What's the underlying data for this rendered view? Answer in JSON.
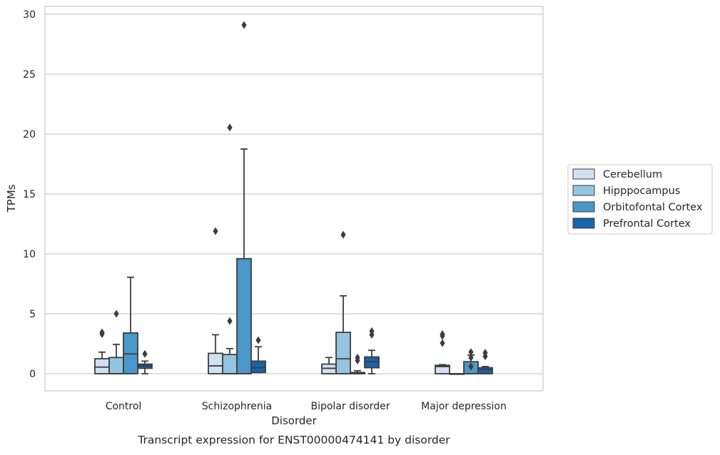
{
  "chart_data": {
    "type": "box",
    "caption": "Transcript expression for ENST00000474141 by disorder",
    "xlabel": "Disorder",
    "ylabel": "TPMs",
    "ylim": [
      -1.4,
      30.6
    ],
    "yticks": [
      0,
      5,
      10,
      15,
      20,
      25,
      30
    ],
    "grid": "horizontal",
    "legend_position": "right",
    "categories": [
      "Control",
      "Schizophrenia",
      "Bipolar disorder",
      "Major depression"
    ],
    "series": [
      {
        "name": "Cerebellum",
        "color": "#d0e1f2",
        "boxes": [
          {
            "whislo": 0.0,
            "q1": 0.0,
            "med": 0.55,
            "q3": 1.25,
            "whishi": 1.8,
            "fliers": [
              3.3,
              3.45
            ]
          },
          {
            "whislo": 0.0,
            "q1": 0.0,
            "med": 0.65,
            "q3": 1.7,
            "whishi": 3.25,
            "fliers": [
              11.9
            ]
          },
          {
            "whislo": 0.0,
            "q1": 0.0,
            "med": 0.45,
            "q3": 0.8,
            "whishi": 1.35,
            "fliers": []
          },
          {
            "whislo": 0.0,
            "q1": 0.0,
            "med": 0.6,
            "q3": 0.7,
            "whishi": 0.75,
            "fliers": [
              2.55,
              3.15,
              3.3
            ]
          }
        ]
      },
      {
        "name": "Hipppocampus",
        "color": "#94c4df",
        "boxes": [
          {
            "whislo": 0.0,
            "q1": 0.0,
            "med": 0.0,
            "q3": 1.35,
            "whishi": 2.45,
            "fliers": [
              5.0
            ]
          },
          {
            "whislo": 0.0,
            "q1": 0.0,
            "med": 0.0,
            "q3": 1.6,
            "whishi": 2.1,
            "fliers": [
              4.4,
              20.55
            ]
          },
          {
            "whislo": 0.0,
            "q1": 0.0,
            "med": 1.25,
            "q3": 3.45,
            "whishi": 6.5,
            "fliers": [
              11.6
            ]
          },
          {
            "whislo": 0.0,
            "q1": 0.0,
            "med": 0.0,
            "q3": 0.0,
            "whishi": 0.0,
            "fliers": []
          }
        ]
      },
      {
        "name": "Orbitofontal Cortex",
        "color": "#4a98c9",
        "boxes": [
          {
            "whislo": 0.0,
            "q1": 0.0,
            "med": 1.65,
            "q3": 3.4,
            "whishi": 8.05,
            "fliers": []
          },
          {
            "whislo": 0.0,
            "q1": 0.0,
            "med": 0.0,
            "q3": 9.6,
            "whishi": 18.75,
            "fliers": [
              29.1
            ]
          },
          {
            "whislo": 0.0,
            "q1": 0.0,
            "med": 0.05,
            "q3": 0.1,
            "whishi": 0.25,
            "fliers": [
              1.1,
              1.35
            ]
          },
          {
            "whislo": 0.0,
            "q1": 0.0,
            "med": 0.0,
            "q3": 1.0,
            "whishi": 1.55,
            "fliers": [
              0.6,
              1.35,
              1.8
            ]
          }
        ]
      },
      {
        "name": "Prefrontal Cortex",
        "color": "#1764ab",
        "boxes": [
          {
            "whislo": 0.0,
            "q1": 0.45,
            "med": 0.65,
            "q3": 0.8,
            "whishi": 1.05,
            "fliers": [
              1.65
            ]
          },
          {
            "whislo": 0.1,
            "q1": 0.1,
            "med": 0.5,
            "q3": 1.05,
            "whishi": 2.25,
            "fliers": [
              2.8
            ]
          },
          {
            "whislo": 0.0,
            "q1": 0.5,
            "med": 1.0,
            "q3": 1.4,
            "whishi": 1.95,
            "fliers": [
              3.25,
              3.55
            ]
          },
          {
            "whislo": 0.0,
            "q1": 0.0,
            "med": 0.35,
            "q3": 0.5,
            "whishi": 0.6,
            "fliers": [
              1.45,
              1.75
            ]
          }
        ]
      }
    ]
  }
}
